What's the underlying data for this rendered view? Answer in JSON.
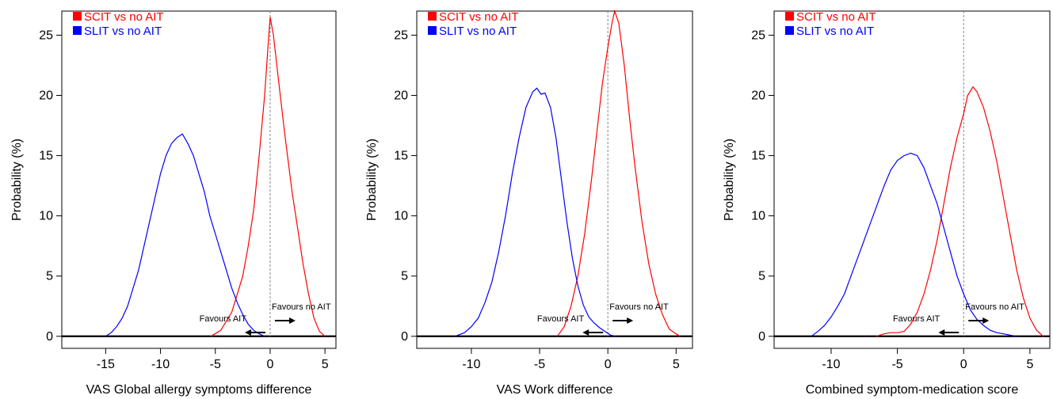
{
  "chart_data": [
    {
      "type": "line",
      "xlabel": "VAS Global allergy symptoms difference",
      "ylabel": "Probability (%)",
      "xlim": [
        -19,
        6
      ],
      "ylim": [
        -1,
        27
      ],
      "x_ticks": [
        -15,
        -10,
        -5,
        0,
        5
      ],
      "y_ticks": [
        0,
        5,
        10,
        15,
        20,
        25
      ],
      "reference_line_x": 0,
      "legend": "top-left",
      "annotations": {
        "left": "Favours AIT",
        "right": "Favours no AIT"
      },
      "series": [
        {
          "name": "SCIT vs no AIT",
          "color": "#ff0000",
          "x": [
            -5.4,
            -4.5,
            -3.5,
            -2.5,
            -2,
            -1.5,
            -1,
            -0.5,
            -0.2,
            0,
            0.3,
            0.8,
            1.3,
            2,
            2.5,
            3,
            3.5,
            4,
            4.5,
            5
          ],
          "y": [
            0,
            0.5,
            2,
            5,
            7.5,
            10.5,
            15,
            20,
            24,
            26.5,
            25,
            21,
            17,
            12,
            9,
            6,
            3.5,
            1.5,
            0.4,
            0
          ]
        },
        {
          "name": "SLIT vs no AIT",
          "color": "#0000ff",
          "x": [
            -15,
            -14.5,
            -14,
            -13.5,
            -13,
            -12.5,
            -12,
            -11.5,
            -11,
            -10.5,
            -10,
            -9.5,
            -9,
            -8.5,
            -8,
            -7.5,
            -7,
            -6.5,
            -6,
            -5.5,
            -5,
            -4.5,
            -4,
            -3.5,
            -3,
            -2.5,
            -2,
            -1.5,
            -1,
            -0.5
          ],
          "y": [
            0,
            0.3,
            0.8,
            1.5,
            2.5,
            4,
            5.5,
            7.5,
            9.5,
            11.5,
            13.5,
            15,
            16,
            16.5,
            16.8,
            16,
            15,
            13.5,
            12,
            10,
            8.5,
            7,
            5.5,
            4,
            2.8,
            1.8,
            1,
            0.5,
            0.2,
            0
          ]
        }
      ]
    },
    {
      "type": "line",
      "xlabel": "VAS Work difference",
      "ylabel": "Probability (%)",
      "xlim": [
        -14,
        6.2
      ],
      "ylim": [
        -1,
        27
      ],
      "x_ticks": [
        -10,
        -5,
        0,
        5
      ],
      "y_ticks": [
        0,
        5,
        10,
        15,
        20,
        25
      ],
      "reference_line_x": 0,
      "legend": "top-left",
      "annotations": {
        "left": "Favours AIT",
        "right": "Favours no AIT"
      },
      "series": [
        {
          "name": "SCIT vs no AIT",
          "color": "#ff0000",
          "x": [
            -3.7,
            -3.2,
            -2.7,
            -2.2,
            -1.7,
            -1.2,
            -0.8,
            -0.4,
            0,
            0.3,
            0.5,
            0.8,
            1.2,
            1.6,
            2,
            2.5,
            3,
            3.5,
            4,
            4.5,
            5,
            5.3
          ],
          "y": [
            0,
            0.8,
            2.5,
            5,
            8.5,
            13,
            17,
            21,
            24,
            26,
            27,
            26,
            22.5,
            18,
            14,
            9.5,
            6,
            3.5,
            1.8,
            0.6,
            0.2,
            0
          ]
        },
        {
          "name": "SLIT vs no AIT",
          "color": "#0000ff",
          "x": [
            -11.2,
            -10.5,
            -10,
            -9.5,
            -9,
            -8.5,
            -8,
            -7.5,
            -7,
            -6.5,
            -6,
            -5.5,
            -5.2,
            -4.9,
            -4.6,
            -4.2,
            -3.8,
            -3.4,
            -3,
            -2.6,
            -2.2,
            -1.8,
            -1.4,
            -1,
            -0.6,
            -0.2,
            0.2,
            0.6
          ],
          "y": [
            0,
            0.3,
            0.8,
            1.5,
            2.8,
            4.5,
            7,
            10,
            13.5,
            16.5,
            19,
            20.3,
            20.6,
            20.1,
            20.2,
            19,
            16.5,
            13,
            9.5,
            6.5,
            4.2,
            2.6,
            1.6,
            1.1,
            0.7,
            0.4,
            0.1,
            0
          ]
        }
      ]
    },
    {
      "type": "line",
      "xlabel": "Combined symptom-medication score",
      "ylabel": "Probability (%)",
      "xlim": [
        -14.3,
        6.5
      ],
      "ylim": [
        -1,
        27
      ],
      "x_ticks": [
        -10,
        -5,
        0,
        5
      ],
      "y_ticks": [
        0,
        5,
        10,
        15,
        20,
        25
      ],
      "reference_line_x": 0,
      "legend": "top-left",
      "annotations": {
        "left": "Favours AIT",
        "right": "Favours no AIT"
      },
      "series": [
        {
          "name": "SCIT vs no AIT",
          "color": "#ff0000",
          "x": [
            -6.6,
            -6,
            -5.5,
            -5,
            -4.5,
            -4,
            -3.5,
            -3,
            -2.5,
            -2,
            -1.5,
            -1,
            -0.5,
            0,
            0.3,
            0.7,
            1,
            1.5,
            2,
            2.5,
            3,
            3.5,
            4,
            4.5,
            5,
            5.5,
            6
          ],
          "y": [
            0,
            0.2,
            0.3,
            0.3,
            0.4,
            1,
            2,
            3.5,
            5.5,
            8,
            11,
            14,
            16.5,
            18.5,
            20,
            20.7,
            20.3,
            19,
            17,
            14.5,
            11.5,
            8.5,
            5.5,
            3.2,
            1.5,
            0.5,
            0
          ]
        },
        {
          "name": "SLIT vs no AIT",
          "color": "#0000ff",
          "x": [
            -11.5,
            -11,
            -10.5,
            -10,
            -9.5,
            -9,
            -8.5,
            -8,
            -7.5,
            -7,
            -6.5,
            -6,
            -5.5,
            -5,
            -4.5,
            -4,
            -3.5,
            -3,
            -2.5,
            -2,
            -1.5,
            -1,
            -0.5,
            0,
            0.5,
            1,
            1.5,
            2,
            2.5,
            3,
            3.5,
            4
          ],
          "y": [
            0,
            0.4,
            0.9,
            1.6,
            2.5,
            3.5,
            5,
            6.5,
            8,
            9.5,
            11,
            12.5,
            13.8,
            14.6,
            15,
            15.2,
            15,
            14,
            12.5,
            11,
            9,
            7,
            5,
            3.5,
            2.2,
            1.4,
            0.9,
            0.5,
            0.3,
            0.2,
            0.1,
            0
          ]
        }
      ]
    }
  ]
}
